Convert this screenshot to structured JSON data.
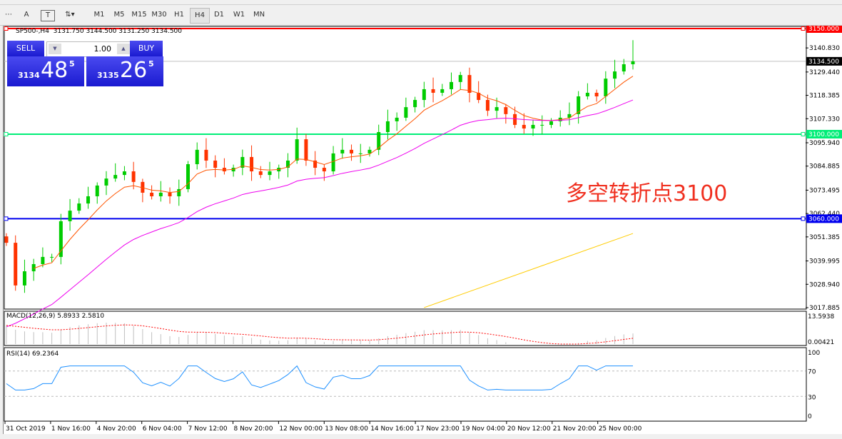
{
  "toolbar": {
    "timeframes": [
      "M1",
      "M5",
      "M15",
      "M30",
      "H1",
      "H4",
      "D1",
      "W1",
      "MN"
    ],
    "active": "H4",
    "font_tool": "A",
    "text_tool": "T"
  },
  "chart": {
    "header": "SP500-,H4  3131.750 3144.500 3131.250 3134.500",
    "trade_panel": {
      "sell_label": "SELL",
      "buy_label": "BUY",
      "lot": "1.00",
      "sell_big": "3134",
      "sell_main": "48",
      "sell_sup": "5",
      "buy_big": "3135",
      "buy_main": "26",
      "buy_sup": "5",
      "button_color": "#2222dd"
    },
    "annotation": "多空转折点3100",
    "price_axis": [
      "3140.830",
      "3129.440",
      "3118.385",
      "3107.330",
      "3095.940",
      "3084.885",
      "3073.495",
      "3062.440",
      "3051.385",
      "3039.995",
      "3028.940",
      "3017.885"
    ],
    "hlines": [
      {
        "price": 3150,
        "label": "3150.000",
        "color": "#ff0000"
      },
      {
        "price": 3100,
        "label": "3100.000",
        "color": "#00ee77"
      },
      {
        "price": 3060,
        "label": "3060.000",
        "color": "#0000ee"
      }
    ],
    "current_price": {
      "label": "3134.500",
      "price": 3134.5
    },
    "range": [
      3017.885,
      3150
    ],
    "colors": {
      "bull": "#00cc00",
      "bear": "#ff3300",
      "ma_fast": "#ff5500",
      "ma_mid": "#ee00ee",
      "ma_slow": "#ffcc00",
      "rsi": "#1e90ff",
      "macd_signal": "#ff0000",
      "macd_hist": "#c0c0c0"
    },
    "closes": [
      3048.6,
      3028.4,
      3035.1,
      3038.5,
      3041.9,
      3041.9,
      3058.8,
      3063.8,
      3067.2,
      3070.6,
      3075.7,
      3079.0,
      3080.7,
      3082.4,
      3077.4,
      3072.3,
      3070.6,
      3072.3,
      3070.6,
      3074.0,
      3085.8,
      3092.6,
      3087.5,
      3084.1,
      3082.4,
      3084.1,
      3089.2,
      3082.4,
      3080.7,
      3082.4,
      3084.1,
      3087.5,
      3097.6,
      3087.5,
      3084.1,
      3082.4,
      3090.9,
      3092.6,
      3090.9,
      3090.9,
      3092.6,
      3101.0,
      3106.1,
      3107.8,
      3112.8,
      3116.2,
      3121.3,
      3119.6,
      3121.3,
      3124.7,
      3128.0,
      3119.6,
      3116.2,
      3111.1,
      3112.8,
      3109.5,
      3104.4,
      3102.7,
      3104.4,
      3104.4,
      3106.1,
      3107.8,
      3109.5,
      3117.9,
      3119.6,
      3117.9,
      3126.3,
      3129.7,
      3133.1,
      3134.5
    ],
    "last_high": 3144.5,
    "ma_slow": [
      [
        46,
        3017.9
      ],
      [
        69,
        3053.0
      ]
    ]
  },
  "macd": {
    "label": "MACD(12,26,9) 5.8933 2.5810",
    "axis_top": "13.5938",
    "axis_bottom": "0.00421"
  },
  "rsi": {
    "label": "RSI(14) 69.2364",
    "levels": [
      "100",
      "70",
      "30",
      "0"
    ]
  },
  "time_axis": [
    "31 Oct 2019",
    "1 Nov 16:00",
    "4 Nov 20:00",
    "6 Nov 04:00",
    "7 Nov 12:00",
    "8 Nov 20:00",
    "12 Nov 00:00",
    "13 Nov 08:00",
    "14 Nov 16:00",
    "17 Nov 23:00",
    "19 Nov 04:00",
    "20 Nov 12:00",
    "21 Nov 20:00",
    "25 Nov 00:00"
  ]
}
